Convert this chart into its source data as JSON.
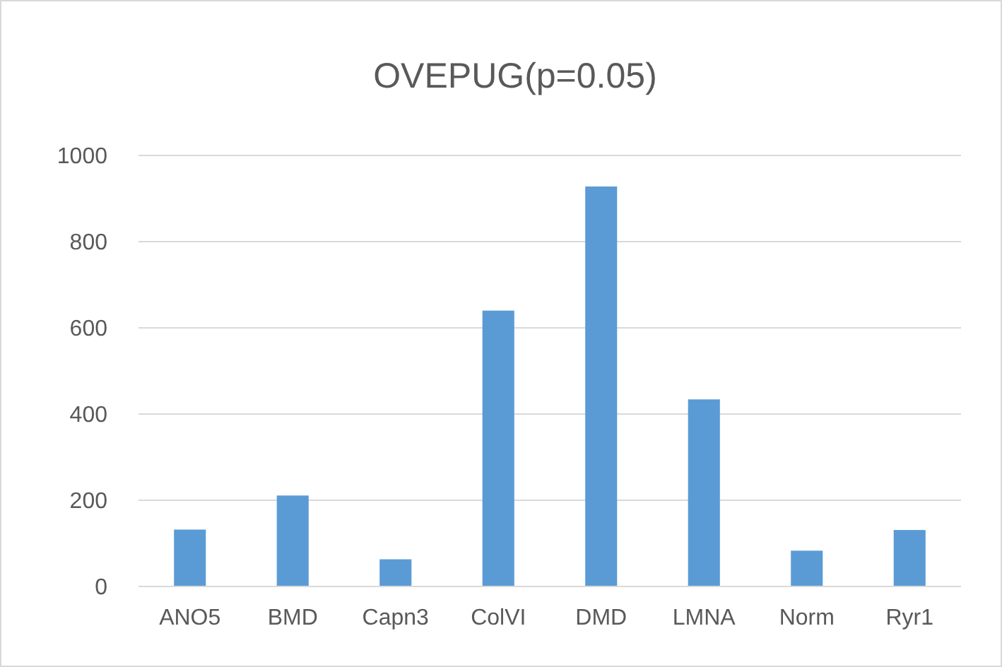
{
  "chart_data": {
    "type": "bar",
    "title": "OVEPUG(p=0.05)",
    "categories": [
      "ANO5",
      "BMD",
      "Capn3",
      "ColVI",
      "DMD",
      "LMNA",
      "Norm",
      "Ryr1"
    ],
    "values": [
      132,
      211,
      63,
      640,
      928,
      434,
      83,
      131
    ],
    "color": "#5b9bd5",
    "ylim": [
      0,
      1000
    ],
    "yticks": [
      0,
      200,
      400,
      600,
      800,
      1000
    ],
    "grid": "y"
  }
}
